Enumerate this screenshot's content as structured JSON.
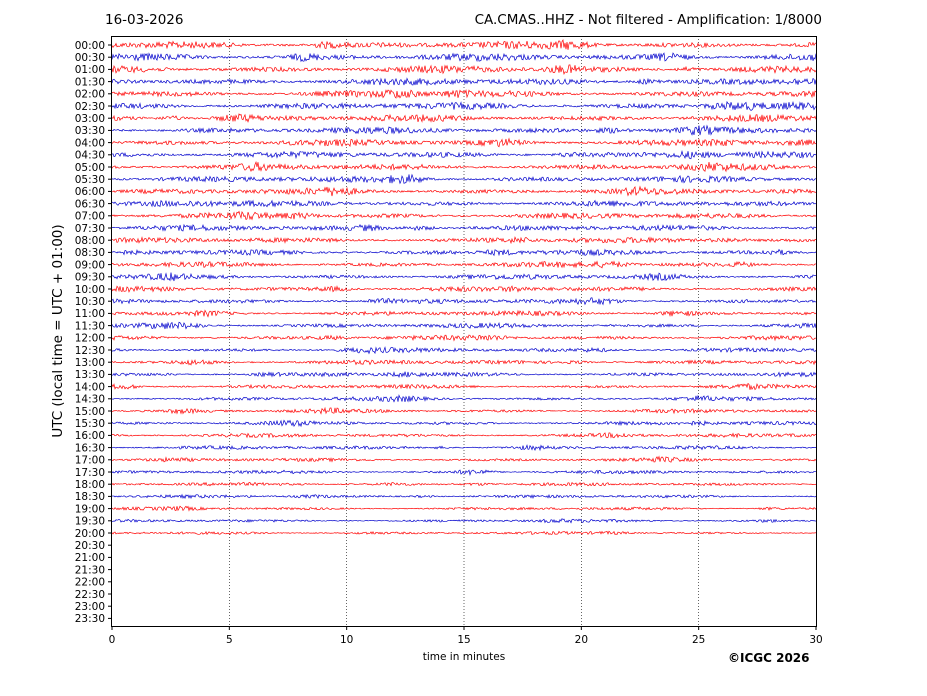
{
  "header": {
    "date": "16-03-2026",
    "title": "CA.CMAS..HHZ - Not filtered - Amplification: 1/8000"
  },
  "footer": {
    "copyright": "©ICGC 2026"
  },
  "colors": {
    "trace_odd": "#ff0000",
    "trace_even": "#0000cc",
    "grid": "#000000"
  },
  "chart_data": {
    "type": "line",
    "title": "CA.CMAS..HHZ - Not filtered - Amplification: 1/8000",
    "xlabel": "time in minutes",
    "ylabel": "UTC (local time = UTC + 01:00)",
    "xlim": [
      0,
      30
    ],
    "xticks": [
      "0",
      "5",
      "10",
      "15",
      "20",
      "25",
      "30"
    ],
    "xtick_values": [
      0,
      5,
      10,
      15,
      20,
      25,
      30
    ],
    "grid_x": true,
    "yticks": [
      "00:00",
      "00:30",
      "01:00",
      "01:30",
      "02:00",
      "02:30",
      "03:00",
      "03:30",
      "04:00",
      "04:30",
      "05:00",
      "05:30",
      "06:00",
      "06:30",
      "07:00",
      "07:30",
      "08:00",
      "08:30",
      "09:00",
      "09:30",
      "10:00",
      "10:30",
      "11:00",
      "11:30",
      "12:00",
      "12:30",
      "13:00",
      "13:30",
      "14:00",
      "14:30",
      "15:00",
      "15:30",
      "16:00",
      "16:30",
      "17:00",
      "17:30",
      "18:00",
      "18:30",
      "19:00",
      "19:30",
      "20:00",
      "20:30",
      "21:00",
      "21:30",
      "22:00",
      "22:30",
      "23:00",
      "23:30"
    ],
    "recorded_traces": 41,
    "trace_colors_alternate": [
      "#ff0000",
      "#0000cc"
    ]
  }
}
